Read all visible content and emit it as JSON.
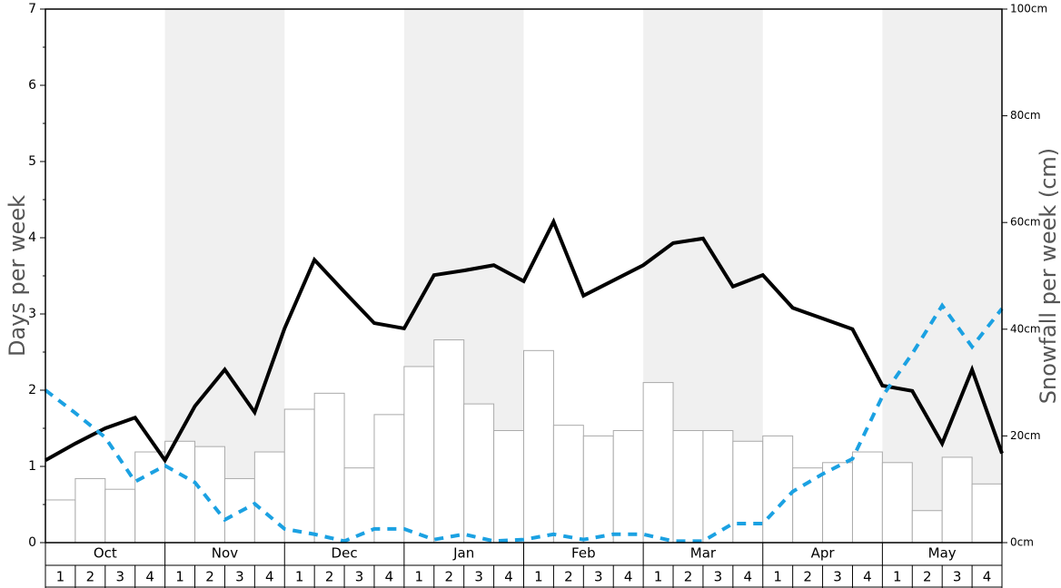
{
  "chart_data": {
    "type": "bar-line",
    "ylabel": "Days per week",
    "y2label": "Snowfall per week (cm)",
    "months": [
      "Oct",
      "Nov",
      "Dec",
      "Jan",
      "Feb",
      "Mar",
      "Apr",
      "May"
    ],
    "weeks": [
      1,
      2,
      3,
      4
    ],
    "shaded_months": [
      "Nov",
      "Jan",
      "Mar",
      "May"
    ],
    "ylim": [
      0,
      7
    ],
    "yticks": [
      0,
      1,
      2,
      3,
      4,
      5,
      6,
      7
    ],
    "yminor_ticks": [
      0.5,
      1.5,
      2.5,
      3.5,
      4.5,
      5.5,
      6.5
    ],
    "y2lim": [
      0,
      100
    ],
    "y2ticks": [
      {
        "value": 0,
        "label": "0cm"
      },
      {
        "value": 20,
        "label": "20cm"
      },
      {
        "value": 40,
        "label": "40cm"
      },
      {
        "value": 60,
        "label": "60cm"
      },
      {
        "value": 80,
        "label": "80cm"
      },
      {
        "value": 100,
        "label": "100cm"
      }
    ],
    "bars": {
      "axis": "y2",
      "color": "#ffffff",
      "stroke": "#aaaaaa",
      "values": [
        8,
        12,
        10,
        17,
        19,
        18,
        12,
        17,
        25,
        28,
        14,
        24,
        33,
        38,
        26,
        21,
        36,
        22,
        20,
        21,
        30,
        21,
        21,
        19,
        20,
        14,
        15,
        17,
        15,
        6,
        16,
        11
      ]
    },
    "series": [
      {
        "color": "#000000",
        "dash": false,
        "values": [
          1.08,
          1.3,
          1.5,
          1.64,
          1.08,
          1.79,
          2.27,
          1.71,
          2.81,
          3.71,
          3.29,
          2.88,
          2.81,
          3.51,
          3.57,
          3.64,
          3.43,
          4.21,
          3.24,
          3.44,
          3.64,
          3.93,
          3.99,
          3.36,
          3.51,
          3.08,
          2.94,
          2.8,
          2.06,
          1.99,
          1.3,
          2.27,
          1.17
        ]
      },
      {
        "color": "#1ba1e2",
        "dash": true,
        "values": [
          2.0,
          1.7,
          1.38,
          0.8,
          1.01,
          0.79,
          0.3,
          0.51,
          0.18,
          0.11,
          0.02,
          0.18,
          0.18,
          0.04,
          0.11,
          0.02,
          0.04,
          0.11,
          0.04,
          0.11,
          0.11,
          0.02,
          0.02,
          0.25,
          0.25,
          0.67,
          0.9,
          1.1,
          1.92,
          2.48,
          3.11,
          2.57,
          3.07
        ]
      }
    ]
  }
}
